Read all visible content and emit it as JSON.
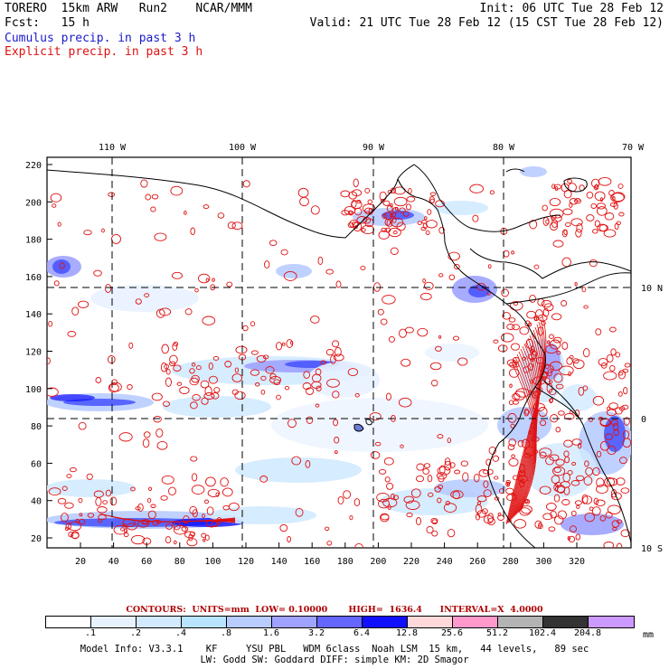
{
  "header": {
    "line1_left": "TORERO  15km ARW   Run2    NCAR/MMM",
    "line1_right": "Init: 06 UTC Tue 28 Feb 12",
    "line2_left": "Fcst:   15 h",
    "line2_right": "Valid: 21 UTC Tue 28 Feb 12 (15 CST Tue 28 Feb 12)",
    "line3": "Cumulus precip. in past 3 h",
    "line4": "Explicit precip. in past 3 h"
  },
  "map": {
    "lon_labels": [
      "110 W",
      "100 W",
      "90 W",
      "80 W",
      "70 W"
    ],
    "lat_labels": [
      "10 N",
      "0",
      "10 S"
    ],
    "y_ticks": [
      "220",
      "200",
      "180",
      "160",
      "140",
      "120",
      "100",
      "80",
      "60",
      "40",
      "20"
    ],
    "x_ticks": [
      "20",
      "40",
      "60",
      "80",
      "100",
      "120",
      "140",
      "160",
      "180",
      "200",
      "220",
      "240",
      "260",
      "280",
      "300",
      "320"
    ],
    "colors": {
      "cumulus": "#3f4bff",
      "explicit": "#e01010",
      "coast": "#000000",
      "grid": "#000000"
    }
  },
  "contour_info": {
    "text": "CONTOURS:  UNITS=mm  LOW= 0.10000       HIGH=  1636.4      INTERVAL=X  4.0000"
  },
  "colorbar": {
    "labels": [
      ".1",
      ".2",
      ".4",
      ".8",
      "1.6",
      "3.2",
      "6.4",
      "12.8",
      "25.6",
      "51.2",
      "102.4",
      "204.8"
    ],
    "unit": "mm",
    "colors": [
      "#ffffff",
      "#e8f2ff",
      "#d2eaff",
      "#b9e4ff",
      "#b8ccff",
      "#9fa3ff",
      "#6466ff",
      "#1010ff",
      "#ffd9d9",
      "#ff99cc",
      "#b3b3b3",
      "#333333",
      "#cc99ff"
    ]
  },
  "footer": {
    "line1": "Model Info: V3.3.1    KF     YSU PBL   WDM 6class  Noah LSM  15 km,   44 levels,   89 sec",
    "line2": "LW: Godd SW: Goddard DIFF: simple KM: 2D Smagor"
  }
}
